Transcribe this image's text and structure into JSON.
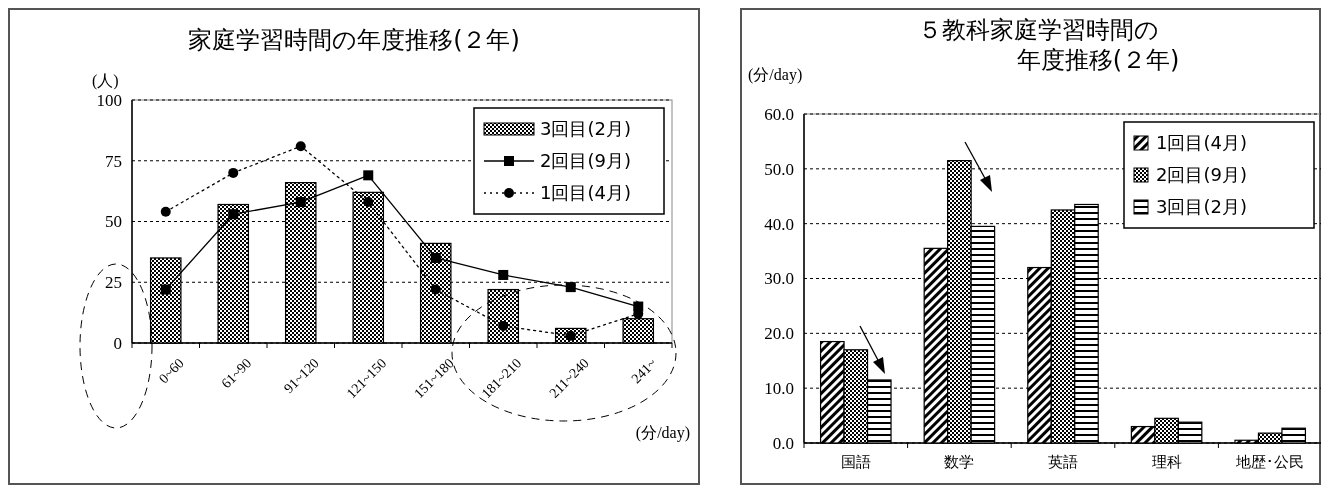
{
  "chart_data": [
    {
      "type": "bar",
      "title": "家庭学習時間の年度推移(２年)",
      "xlabel": "(分/day)",
      "ylabel": "(人)",
      "categories": [
        "0~60",
        "61~90",
        "91~120",
        "121~150",
        "151~180",
        "181~210",
        "211~240",
        "241~"
      ],
      "series": [
        {
          "name": "3回目(2月)",
          "color": "#000000",
          "values": [
            35,
            57,
            66,
            62,
            41,
            22,
            6,
            10
          ]
        },
        {
          "name": "2回目(9月)",
          "type": "line",
          "color": "#000000",
          "marker": "square",
          "line_style": "solid",
          "values": [
            22,
            53,
            58,
            69,
            35,
            28,
            23,
            15
          ]
        },
        {
          "name": "1回目(4月)",
          "type": "line",
          "color": "#000000",
          "marker": "circle",
          "line_style": "dotted",
          "values": [
            54,
            70,
            81,
            58,
            22,
            7,
            3,
            12
          ]
        }
      ],
      "ylim": [
        0,
        100
      ],
      "yticks": [
        0,
        25,
        50,
        75,
        100
      ],
      "grid": "y",
      "legend": "top right"
    },
    {
      "type": "bar",
      "title": "５教科家庭学習時間の年度推移(２年)",
      "ylabel": "(分/day)",
      "categories": [
        "国語",
        "数学",
        "英語",
        "理科",
        "地歴･公民"
      ],
      "series": [
        {
          "name": "1回目(4月)",
          "color": "#000000",
          "values": [
            18.5,
            35.5,
            32,
            3,
            0.5
          ]
        },
        {
          "name": "2回目(9月)",
          "color": "#000000",
          "values": [
            17,
            51.5,
            42.5,
            4.5,
            1.8
          ]
        },
        {
          "name": "3回目(2月)",
          "color": "#000000",
          "values": [
            11.5,
            39.5,
            43.5,
            3.8,
            2.7
          ]
        }
      ],
      "ylim": [
        0,
        60
      ],
      "yticks": [
        {
          "value": 0,
          "label": "0.0"
        },
        {
          "value": 10,
          "label": "10.0"
        },
        {
          "value": 20,
          "label": "20.0"
        },
        {
          "value": 30,
          "label": "30.0"
        },
        {
          "value": 40,
          "label": "40.0"
        },
        {
          "value": 50,
          "label": "50.0"
        },
        {
          "value": 60,
          "label": "60.0"
        }
      ],
      "grid": "y",
      "legend": "top right"
    }
  ]
}
